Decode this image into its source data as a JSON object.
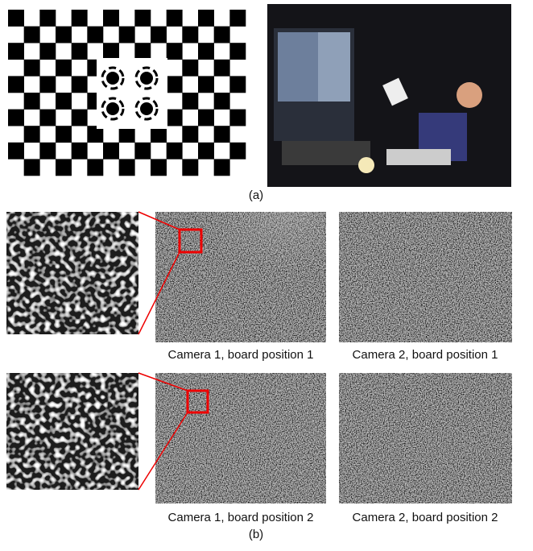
{
  "figure": {
    "part_a_label": "(a)",
    "rows": [
      {
        "captions": [
          "Camera 1, board position 1",
          "Camera 2, board position 1"
        ]
      },
      {
        "captions": [
          "Camera 1, board position 2",
          "Camera 2, board position 2"
        ]
      }
    ],
    "part_b_label": "(b)"
  }
}
